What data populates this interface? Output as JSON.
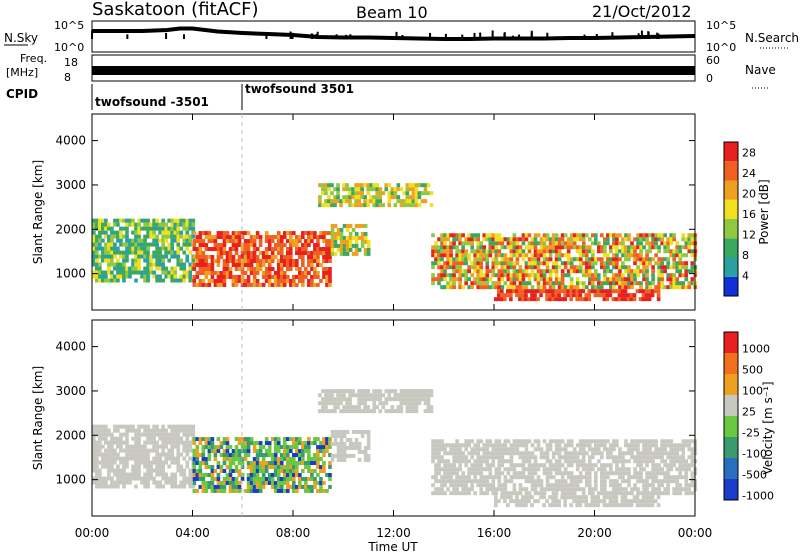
{
  "header": {
    "station": "Saskatoon (fitACF)",
    "beam": "Beam 10",
    "date": "21/Oct/2012"
  },
  "chart_data": [
    {
      "type": "line",
      "panel": "noise",
      "left_label": "N.Sky",
      "right_label": "N.Search",
      "left_ticks": [
        "10^5",
        "10^0"
      ],
      "right_ticks": [
        "10^5",
        "10^0"
      ],
      "x_range": [
        0,
        24
      ],
      "series": [
        {
          "name": "N.Sky",
          "x": [
            0,
            1,
            2,
            3,
            3.5,
            4,
            5,
            6,
            7,
            8,
            9,
            10,
            11,
            12,
            13,
            14,
            15,
            16,
            17,
            18,
            19,
            20,
            21,
            22,
            23,
            24
          ],
          "log_values": [
            3.6,
            3.6,
            3.6,
            3.8,
            4.1,
            4.1,
            3.5,
            3.2,
            3.0,
            2.8,
            2.4,
            2.3,
            2.3,
            2.2,
            2.1,
            2.0,
            2.0,
            2.1,
            2.1,
            2.1,
            2.2,
            2.2,
            2.3,
            2.4,
            2.5,
            2.6
          ]
        }
      ]
    },
    {
      "type": "line",
      "panel": "frequency",
      "left_label_lines": [
        "Freq.",
        "[MHz]"
      ],
      "right_label": "Nave",
      "left_ticks": [
        "18",
        "8"
      ],
      "right_ticks": [
        "60",
        "0"
      ],
      "x_range": [
        0,
        24
      ],
      "series": [
        {
          "name": "Nave",
          "note_values_band": [
            40,
            45
          ]
        }
      ]
    },
    {
      "type": "table",
      "panel": "cpid",
      "label": "CPID",
      "segments": [
        {
          "start_hour": 0,
          "name": "twofsound -3501"
        },
        {
          "start_hour": 6,
          "name": "twofsound 3501"
        }
      ]
    },
    {
      "type": "heatmap",
      "panel": "power",
      "ylabel": "Slant Range [km]",
      "ylim": [
        180,
        4600
      ],
      "yticks": [
        1000,
        2000,
        3000,
        4000
      ],
      "x_range": [
        0,
        24
      ],
      "colorbar_label": "Power [dB]",
      "colorbar_ticks": [
        "4",
        "8",
        "12",
        "16",
        "20",
        "24",
        "28"
      ],
      "colorbar_range": [
        0,
        30
      ],
      "colors": [
        "#1030d8",
        "#2aa0a0",
        "#3aa860",
        "#90c840",
        "#f0e020",
        "#f0a020",
        "#f06020",
        "#e82020"
      ]
    },
    {
      "type": "heatmap",
      "panel": "velocity",
      "ylabel": "Slant Range [km]",
      "ylim": [
        180,
        4600
      ],
      "yticks": [
        1000,
        2000,
        3000,
        4000
      ],
      "x_range": [
        0,
        24
      ],
      "colorbar_label": "Velocity [m s⁻¹]",
      "colorbar_ticks": [
        "1000",
        "500",
        "100",
        "25",
        "-25",
        "-100",
        "-500",
        "-1000"
      ],
      "colors": [
        "#1a3cc8",
        "#2a6ec0",
        "#3a9a70",
        "#6ac840",
        "#c8c8c0",
        "#f0a020",
        "#f07020",
        "#e82020"
      ],
      "ground_scatter_color": "#c8c8c0"
    }
  ],
  "xaxis": {
    "label": "Time UT",
    "ticks": [
      "00:00",
      "04:00",
      "08:00",
      "12:00",
      "16:00",
      "20:00",
      "00:00"
    ]
  }
}
